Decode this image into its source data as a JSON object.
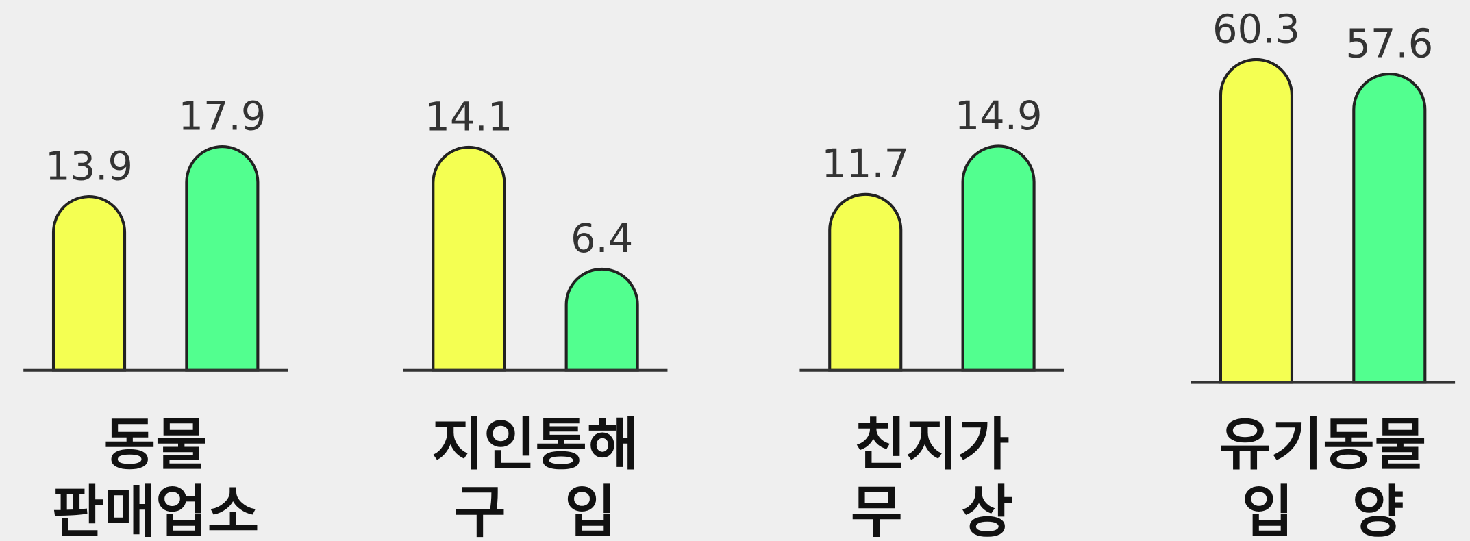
{
  "chart_data": [
    {
      "type": "bar",
      "categories": [
        [
          "동물",
          "판매업소"
        ]
      ],
      "ylim": [
        0,
        19.5
      ],
      "series": [
        {
          "color": "#f4ff52",
          "values": [
            13.9
          ]
        },
        {
          "color": "#52ff8f",
          "values": [
            17.9
          ]
        }
      ]
    },
    {
      "type": "bar",
      "categories": [
        [
          "지인통해",
          "구   입"
        ]
      ],
      "ylim": [
        0,
        15.4
      ],
      "series": [
        {
          "color": "#f4ff52",
          "values": [
            14.1
          ]
        },
        {
          "color": "#52ff8f",
          "values": [
            6.4
          ]
        }
      ]
    },
    {
      "type": "bar",
      "categories": [
        [
          "친지가",
          "무   상"
        ]
      ],
      "ylim": [
        0,
        16.2
      ],
      "series": [
        {
          "color": "#f4ff52",
          "values": [
            11.7
          ]
        },
        {
          "color": "#52ff8f",
          "values": [
            14.9
          ]
        }
      ]
    },
    {
      "type": "bar",
      "categories": [
        [
          "유기동물",
          "입   양"
        ]
      ],
      "ylim": [
        0,
        63
      ],
      "series": [
        {
          "color": "#f4ff52",
          "values": [
            60.3
          ]
        },
        {
          "color": "#52ff8f",
          "values": [
            57.6
          ]
        }
      ]
    }
  ]
}
